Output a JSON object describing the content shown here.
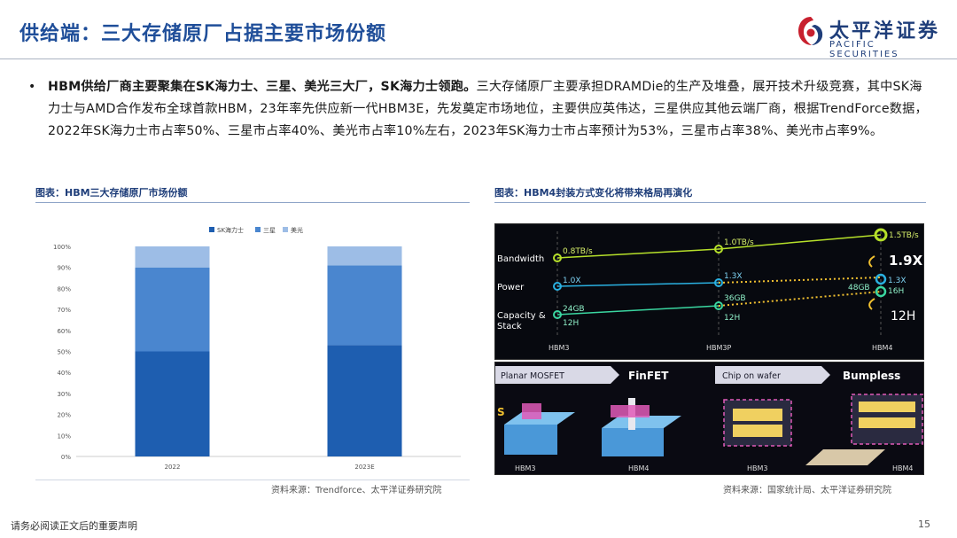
{
  "header": {
    "title": "供给端：三大存储原厂占据主要市场份额",
    "logo_cn": "太平洋证券",
    "logo_en": "PACIFIC SECURITIES"
  },
  "bullet": {
    "bold_text": "HBM供给厂商主要聚集在SK海力士、三星、美光三大厂，SK海力士领跑。",
    "text": "三大存储原厂主要承担DRAMDie的生产及堆叠，展开技术升级竞赛，其中SK海力士与AMD合作发布全球首款HBM，23年率先供应新一代HBM3E，先发奠定市场地位，主要供应英伟达，三星供应其他云端厂商，根据TrendForce数据，2022年SK海力士市占率50%、三星市占率40%、美光市占率10%左右，2023年SK海力士市占率预计为53%，三星市占率38%、美光市占率9%。"
  },
  "left_panel": {
    "caption": "图表：HBM三大存储原厂市场份额",
    "source": "资料来源：Trendforce、太平洋证券研究院"
  },
  "right_panel": {
    "caption": "图表：HBM4封装方式变化将带来格局再演化",
    "source": "资料来源：国家统计局、太平洋证券研究院",
    "diagram1": {
      "row_labels": [
        "Bandwidth",
        "Power",
        "Capacity &",
        "Stack"
      ],
      "x_labels": [
        "HBM3",
        "HBM3P",
        "HBM4"
      ],
      "bandwidth_values": [
        "0.8TB/s",
        "1.0TB/s",
        "1.5TB/s"
      ],
      "power_values": [
        "1.0X",
        "1.3X",
        "1.3X"
      ],
      "capacity_values": [
        "24GB",
        "36GB",
        "48GB"
      ],
      "stack_values": [
        "12H",
        "12H",
        "16H"
      ],
      "callout_bw": "1.9X",
      "callout_stack": "12H",
      "colors": {
        "bandwidth": "#b6e02a",
        "power": "#2ab0e0",
        "capacity": "#3ad6a0"
      }
    },
    "diagram2": {
      "planar": "Planar MOSFET",
      "finfet": "FinFET",
      "chip_on_wafer": "Chip on wafer",
      "bumpless": "Bumpless",
      "bottom_labels": [
        "HBM3",
        "HBM4",
        "HBM3",
        "HBM4"
      ]
    }
  },
  "footer": {
    "note": "请务必阅读正文后的重要声明",
    "page": "15"
  },
  "chart_data": {
    "type": "bar",
    "stacked": true,
    "categories": [
      "2022",
      "2023E"
    ],
    "series": [
      {
        "name": "SK海力士",
        "values": [
          50,
          53
        ],
        "color": "#1e5eb0"
      },
      {
        "name": "三星",
        "values": [
          40,
          38
        ],
        "color": "#4a86cf"
      },
      {
        "name": "美光",
        "values": [
          10,
          9
        ],
        "color": "#9dbde6"
      }
    ],
    "y_ticks": [
      "0%",
      "10%",
      "20%",
      "30%",
      "40%",
      "50%",
      "60%",
      "70%",
      "80%",
      "90%",
      "100%"
    ],
    "ylim": [
      0,
      100
    ],
    "legend_position": "top-center",
    "grid": false
  }
}
